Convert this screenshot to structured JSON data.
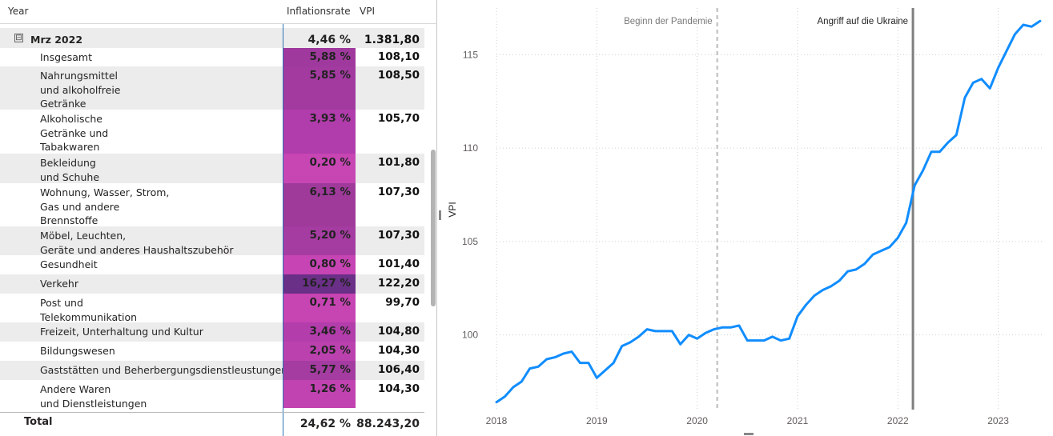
{
  "matrix": {
    "headers": {
      "year": "Year",
      "inflation": "Inflationsrate",
      "vpi": "VPI"
    },
    "group": {
      "expand_symbol": "⊟",
      "label": "Mrz 2022",
      "inflation": "4,46 %",
      "vpi": "1.381,80"
    },
    "rows": [
      {
        "label": [
          "Insgesamt"
        ],
        "inflation": "5,88 %",
        "vpi": "108,10",
        "color": "#a0399e"
      },
      {
        "label": [
          "Nahrungsmittel",
          "und alkoholfreie",
          "Getränke"
        ],
        "inflation": "5,85 %",
        "vpi": "108,50",
        "color": "#a23aa0"
      },
      {
        "label": [
          "Alkoholische",
          "Getränke und",
          "Tabakwaren"
        ],
        "inflation": "3,93 %",
        "vpi": "105,70",
        "color": "#b13cab"
      },
      {
        "label": [
          "Bekleidung",
          "und Schuhe"
        ],
        "inflation": "0,20 %",
        "vpi": "101,80",
        "color": "#c845b4"
      },
      {
        "label": [
          "Wohnung, Wasser, Strom,",
          "Gas und andere",
          "Brennstoffe"
        ],
        "inflation": "6,13 %",
        "vpi": "107,30",
        "color": "#9f3a9b"
      },
      {
        "label": [
          "Möbel, Leuchten,",
          "Geräte und anderes Haushaltszubehör"
        ],
        "inflation": "5,20 %",
        "vpi": "107,30",
        "color": "#a53ca1"
      },
      {
        "label": [
          "Gesundheit"
        ],
        "inflation": "0,80 %",
        "vpi": "101,40",
        "color": "#c644b3"
      },
      {
        "label": [
          "Verkehr"
        ],
        "inflation": "16,27 %",
        "vpi": "122,20",
        "color": "#6a2f86"
      },
      {
        "label": [
          "Post und",
          "Telekommunikation"
        ],
        "inflation": "0,71 %",
        "vpi": "99,70",
        "color": "#c744b3"
      },
      {
        "label": [
          "Freizeit, Unterhaltung und Kultur"
        ],
        "inflation": "3,46 %",
        "vpi": "104,80",
        "color": "#b23dab"
      },
      {
        "label": [
          "Bildungswesen"
        ],
        "inflation": "2,05 %",
        "vpi": "104,30",
        "color": "#bb41af"
      },
      {
        "label": [
          "Gaststätten und Beherbergungsdienstleustungen"
        ],
        "inflation": "5,77 %",
        "vpi": "106,40",
        "color": "#a53ca1"
      },
      {
        "label": [
          "Andere Waren",
          "und Dienstleistungen"
        ],
        "inflation": "1,26 %",
        "vpi": "104,30",
        "color": "#c143b1"
      }
    ],
    "total": {
      "label": "Total",
      "inflation": "24,62 %",
      "vpi": "88.243,20"
    }
  },
  "chart_data": {
    "type": "line",
    "title": "",
    "xlabel": "",
    "ylabel": "VPI",
    "xlim": [
      2018.0,
      2023.45
    ],
    "ylim": [
      96.0,
      117.5
    ],
    "x_ticks": [
      2018,
      2019,
      2020,
      2021,
      2022,
      2023
    ],
    "y_ticks": [
      100,
      105,
      110,
      115
    ],
    "grid": true,
    "line_color": "#118dff",
    "annotations": [
      {
        "label": "Beginn der Pandemie",
        "x": 2020.2,
        "style": "dashed",
        "color": "#c8c8c8"
      },
      {
        "label": "Angriff auf die Ukraine",
        "x": 2022.15,
        "style": "solid",
        "color": "#7f7f7f"
      }
    ],
    "series": [
      {
        "x": [
          2018.0,
          2018.083,
          2018.167,
          2018.25,
          2018.333,
          2018.417,
          2018.5,
          2018.583,
          2018.667,
          2018.75,
          2018.833,
          2018.917,
          2019.0,
          2019.083,
          2019.167,
          2019.25,
          2019.333,
          2019.417,
          2019.5,
          2019.583,
          2019.667,
          2019.75,
          2019.833,
          2019.917,
          2020.0,
          2020.083,
          2020.167,
          2020.25,
          2020.333,
          2020.417,
          2020.5,
          2020.583,
          2020.667,
          2020.75,
          2020.833,
          2020.917,
          2021.0,
          2021.083,
          2021.167,
          2021.25,
          2021.333,
          2021.417,
          2021.5,
          2021.583,
          2021.667,
          2021.75,
          2021.833,
          2021.917,
          2022.0,
          2022.083,
          2022.167,
          2022.25,
          2022.333,
          2022.417,
          2022.5,
          2022.583,
          2022.667,
          2022.75,
          2022.833,
          2022.917,
          2023.0,
          2023.083,
          2023.167,
          2023.25,
          2023.333,
          2023.417
        ],
        "values": [
          96.4,
          96.7,
          97.2,
          97.5,
          98.2,
          98.3,
          98.7,
          98.8,
          99.0,
          99.1,
          98.5,
          98.5,
          97.7,
          98.1,
          98.5,
          99.4,
          99.6,
          99.9,
          100.3,
          100.2,
          100.2,
          100.2,
          99.5,
          100.0,
          99.8,
          100.1,
          100.3,
          100.4,
          100.4,
          100.5,
          99.7,
          99.7,
          99.7,
          99.9,
          99.7,
          99.8,
          101.0,
          101.6,
          102.1,
          102.4,
          102.6,
          102.9,
          103.4,
          103.5,
          103.8,
          104.3,
          104.5,
          104.7,
          105.2,
          106.0,
          108.0,
          108.8,
          109.8,
          109.8,
          110.3,
          110.7,
          112.7,
          113.5,
          113.7,
          113.2,
          114.3,
          115.2,
          116.1,
          116.6,
          116.5,
          116.8
        ]
      }
    ]
  }
}
